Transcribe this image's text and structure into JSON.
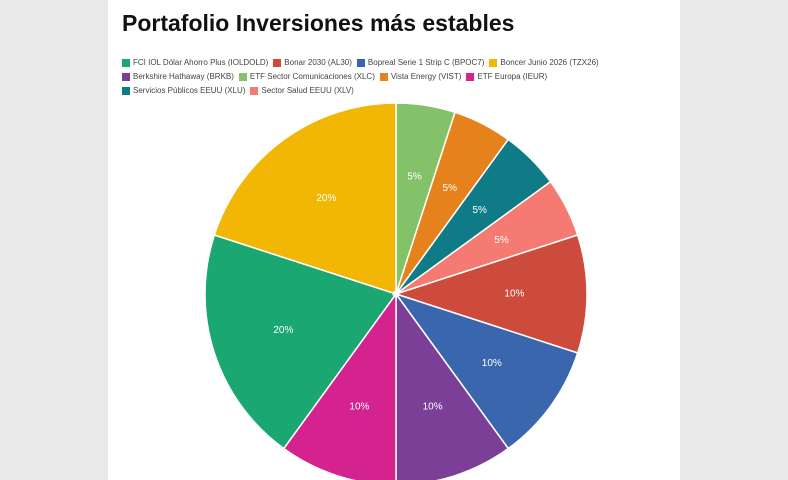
{
  "chart_data": {
    "type": "pie",
    "title": "Portafolio Inversiones más estables",
    "series": [
      {
        "name": "FCI IOL Dólar Ahorro Plus (IOLDOLD)",
        "color": "#1aa772",
        "values": [
          20
        ],
        "value_labels": [
          "20%"
        ]
      },
      {
        "name": "Bonar 2030 (AL30)",
        "color": "#cc4b3c",
        "values": [
          10
        ],
        "value_labels": [
          "10%"
        ]
      },
      {
        "name": "Bopreal Serie 1 Strip C (BPOC7)",
        "color": "#3a66ad",
        "values": [
          10
        ],
        "value_labels": [
          "10%"
        ]
      },
      {
        "name": "Boncer Junio 2026 (TZX26)",
        "color": "#f2b705",
        "values": [
          20
        ],
        "value_labels": [
          "20%"
        ]
      },
      {
        "name": "Berkshire Hathaway (BRKB)",
        "color": "#7b3f98",
        "values": [
          10
        ],
        "value_labels": [
          "10%"
        ]
      },
      {
        "name": "ETF Sector Comunicaciones (XLC)",
        "color": "#84c26a",
        "values": [
          5
        ],
        "value_labels": [
          "5%"
        ]
      },
      {
        "name": "Vista Energy (VIST)",
        "color": "#e6821c",
        "values": [
          5
        ],
        "value_labels": [
          "5%"
        ]
      },
      {
        "name": "ETF Europa (IEUR)",
        "color": "#d4238f",
        "values": [
          10
        ],
        "value_labels": [
          "10%"
        ]
      },
      {
        "name": "Servicios Públicos EEUU (XLU)",
        "color": "#0f7b87",
        "values": [
          5
        ],
        "value_labels": [
          "5%"
        ]
      },
      {
        "name": "Sector Salud EEUU (XLV)",
        "color": "#f47a72",
        "values": [
          5
        ],
        "value_labels": [
          "5%"
        ]
      }
    ]
  }
}
